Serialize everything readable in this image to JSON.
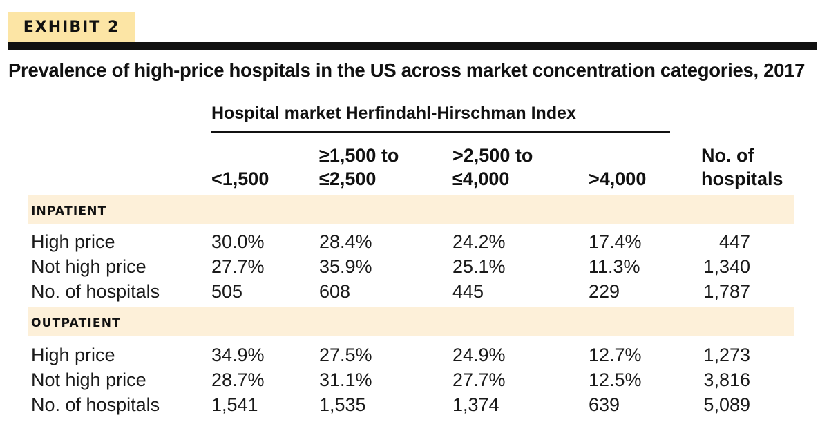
{
  "exhibit_label": "EXHIBIT 2",
  "title": "Prevalence of high-price hospitals in the US across market concentration categories, 2017",
  "column_group_label": "Hospital market Herfindahl-Hirschman Index",
  "columns": [
    {
      "line1": "",
      "line2": "<1,500"
    },
    {
      "line1": "≥1,500 to",
      "line2": "≤2,500"
    },
    {
      "line1": ">2,500 to",
      "line2": "≤4,000"
    },
    {
      "line1": "",
      "line2": ">4,000"
    },
    {
      "line1": "No. of",
      "line2": "hospitals"
    }
  ],
  "sections": [
    {
      "label": "INPATIENT",
      "rows": [
        {
          "label": "High price",
          "cells": [
            "30.0%",
            "28.4%",
            "24.2%",
            "17.4%",
            "447"
          ]
        },
        {
          "label": "Not high price",
          "cells": [
            "27.7%",
            "35.9%",
            "25.1%",
            "11.3%",
            "1,340"
          ]
        },
        {
          "label": "No. of hospitals",
          "cells": [
            "505",
            "608",
            "445",
            "229",
            "1,787"
          ]
        }
      ]
    },
    {
      "label": "OUTPATIENT",
      "rows": [
        {
          "label": "High price",
          "cells": [
            "34.9%",
            "27.5%",
            "24.9%",
            "12.7%",
            "1,273"
          ]
        },
        {
          "label": "Not high price",
          "cells": [
            "28.7%",
            "31.1%",
            "27.7%",
            "12.5%",
            "3,816"
          ]
        },
        {
          "label": "No. of hospitals",
          "cells": [
            "1,541",
            "1,535",
            "1,374",
            "639",
            "5,089"
          ]
        }
      ]
    }
  ],
  "colors": {
    "accent_band": "#fce5a5",
    "section_band": "#fdf0d9",
    "rule": "#111111"
  },
  "chart_data": {
    "type": "table",
    "title": "Prevalence of high-price hospitals in the US across market concentration categories, 2017",
    "column_group": "Hospital market Herfindahl-Hirschman Index",
    "columns": [
      "<1,500",
      "≥1,500 to ≤2,500",
      ">2,500 to ≤4,000",
      ">4,000",
      "No. of hospitals"
    ],
    "sections": [
      {
        "name": "INPATIENT",
        "rows": [
          {
            "label": "High price",
            "values": [
              30.0,
              28.4,
              24.2,
              17.4
            ],
            "total": 447
          },
          {
            "label": "Not high price",
            "values": [
              27.7,
              35.9,
              25.1,
              11.3
            ],
            "total": 1340
          },
          {
            "label": "No. of hospitals",
            "values": [
              505,
              608,
              445,
              229
            ],
            "total": 1787
          }
        ]
      },
      {
        "name": "OUTPATIENT",
        "rows": [
          {
            "label": "High price",
            "values": [
              34.9,
              27.5,
              24.9,
              12.7
            ],
            "total": 1273
          },
          {
            "label": "Not high price",
            "values": [
              28.7,
              31.1,
              27.7,
              12.5
            ],
            "total": 3816
          },
          {
            "label": "No. of hospitals",
            "values": [
              1541,
              1535,
              1374,
              639
            ],
            "total": 5089
          }
        ]
      }
    ]
  }
}
